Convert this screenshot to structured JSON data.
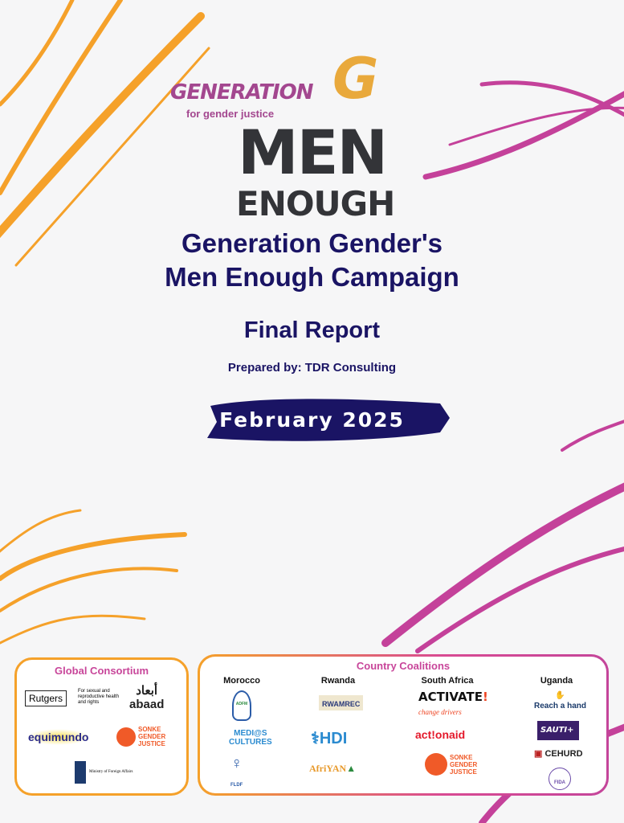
{
  "logo": {
    "generation": "GENERATION",
    "g": "G",
    "tagline": "for gender justice",
    "men": "MEN",
    "enough": "ENOUGH"
  },
  "title": {
    "line1": "Generation Gender's",
    "line2": "Men Enough Campaign",
    "subtitle": "Final Report",
    "prepared_by": "Prepared by: TDR Consulting",
    "date": "February 2025"
  },
  "colors": {
    "navy": "#1a1464",
    "purple": "#a3478f",
    "orange": "#f5a12a",
    "magenta": "#c8469a",
    "dark": "#333438"
  },
  "global_consortium": {
    "heading": "Global Consortium",
    "logos": [
      "Rutgers - For sexual and reproductive health and rights",
      "أبعاد abaad",
      "equimundo - Center for Masculinities & Social Justice",
      "Sonke Gender Justice",
      "Ministry of Foreign Affairs"
    ]
  },
  "country_coalitions": {
    "heading": "Country Coalitions",
    "countries": [
      {
        "name": "Morocco",
        "logos": [
          "ADFM",
          "MEDI@S CULTURES",
          "FLDF"
        ]
      },
      {
        "name": "Rwanda",
        "logos": [
          "RWAMREC",
          "HDI",
          "AfriYAN"
        ]
      },
      {
        "name": "South Africa",
        "logos": [
          "ACTIVATE! change drivers",
          "actionaid",
          "Sonke Gender Justice"
        ]
      },
      {
        "name": "Uganda",
        "logos": [
          "Reach a hand",
          "SAUTI+",
          "CEHURD",
          "FIDA Uganda"
        ]
      }
    ]
  }
}
